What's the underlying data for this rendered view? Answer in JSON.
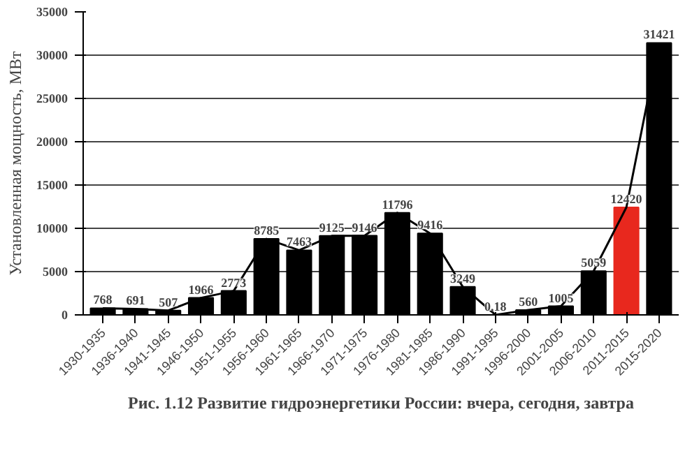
{
  "chart_data": {
    "type": "bar",
    "ylabel": "Установленная мощность, МВт",
    "categories": [
      "1930-1935",
      "1936-1940",
      "1941-1945",
      "1946-1950",
      "1951-1955",
      "1956-1960",
      "1961-1965",
      "1966-1970",
      "1971-1975",
      "1976-1980",
      "1981-1985",
      "1986-1990",
      "1991-1995",
      "1996-2000",
      "2001-2005",
      "2006-2010",
      "2011-2015",
      "2015-2020"
    ],
    "series": [
      {
        "colors": [
          "#000000",
          "#000000",
          "#000000",
          "#000000",
          "#000000",
          "#000000",
          "#000000",
          "#000000",
          "#000000",
          "#000000",
          "#000000",
          "#000000",
          "#000000",
          "#000000",
          "#000000",
          "#000000",
          "#e8281e",
          "#000000"
        ],
        "values": [
          768,
          691,
          507,
          1966,
          2773,
          8785,
          7463,
          9125,
          9146,
          11796,
          9416,
          3249,
          0.18,
          560,
          1005,
          5059,
          12420,
          31421
        ],
        "value_labels": [
          "768",
          "691",
          "507",
          "1966",
          "2773",
          "8785",
          "7463",
          "9125",
          "9146",
          "11796",
          "9416",
          "3249",
          "0,18",
          "560",
          "1005",
          "5059",
          "12420",
          "31421"
        ]
      },
      {
        "type": "line",
        "color": "#000000",
        "values": [
          768,
          691,
          507,
          1966,
          2773,
          8785,
          7463,
          9125,
          9146,
          11796,
          9416,
          3249,
          0.18,
          560,
          1005,
          5059,
          12420,
          31421
        ]
      }
    ],
    "ylim": [
      0,
      35000
    ],
    "yticks": [
      0,
      5000,
      10000,
      15000,
      20000,
      25000,
      30000,
      35000
    ],
    "grid": "y",
    "marker": "none",
    "line_style": "solid",
    "annotations": [
      "Рис. 1.12 Развитие гидроэнергетики России: вчера, сегодня, завтра"
    ]
  }
}
